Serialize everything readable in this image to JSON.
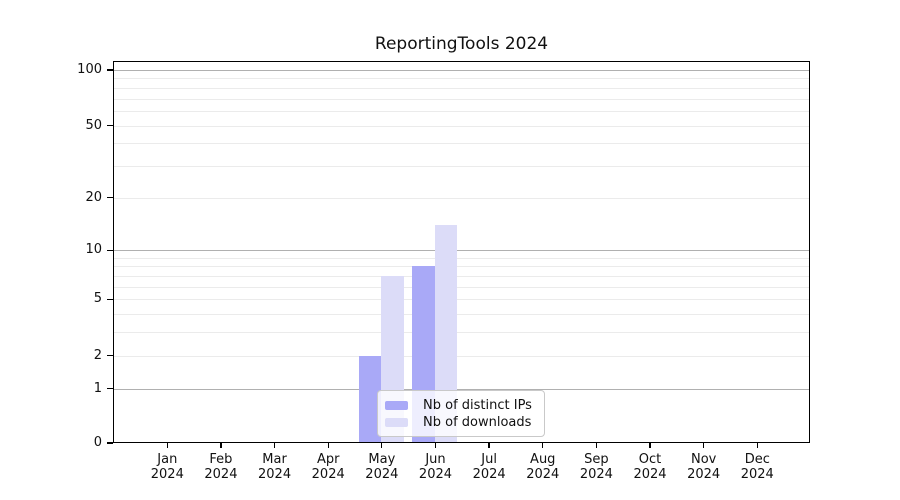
{
  "chart_data": {
    "type": "bar",
    "title": "ReportingTools 2024",
    "categories": [
      "Jan",
      "Feb",
      "Mar",
      "Apr",
      "May",
      "Jun",
      "Jul",
      "Aug",
      "Sep",
      "Oct",
      "Nov",
      "Dec"
    ],
    "category_year": "2024",
    "series": [
      {
        "name": "Nb of distinct IPs",
        "color": "#a9a9f7",
        "values": [
          0,
          0,
          0,
          0,
          2,
          8,
          0,
          0,
          0,
          0,
          0,
          0
        ]
      },
      {
        "name": "Nb of downloads",
        "color": "#dcdcf8",
        "values": [
          0,
          0,
          0,
          0,
          7,
          14,
          0,
          0,
          0,
          0,
          0,
          0
        ]
      }
    ],
    "yscale": "log1p",
    "ylim": [
      0,
      100
    ],
    "y_ticks": [
      0,
      1,
      2,
      5,
      10,
      20,
      50,
      100
    ],
    "y_major_gridlines": [
      1,
      10,
      100
    ],
    "y_minor_gridlines": [
      2,
      3,
      4,
      5,
      6,
      7,
      8,
      9,
      20,
      30,
      40,
      50,
      60,
      70,
      80,
      90
    ],
    "grid": true,
    "legend_position": "inside-bottom-center",
    "colors": {
      "major_grid": "#b0b0b0",
      "minor_grid": "#ebebeb",
      "axis": "#000000",
      "legend_border": "#c9c9c9",
      "background": "#ffffff"
    }
  }
}
